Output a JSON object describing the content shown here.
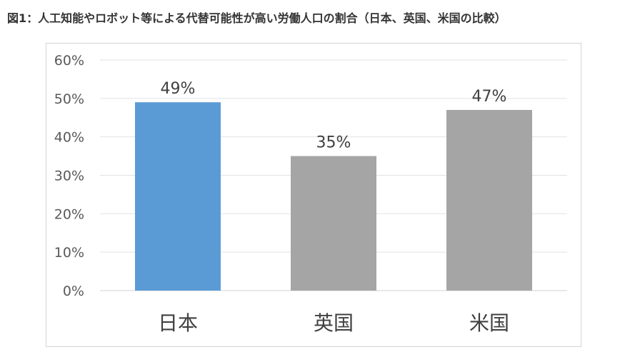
{
  "title": "図1：人工知能やロボット等による代替可能性が高い労働人口の割合（日本、英国、米国の比較）",
  "chart_data": {
    "type": "bar",
    "categories": [
      "日本",
      "英国",
      "米国"
    ],
    "values": [
      49,
      35,
      47
    ],
    "data_labels": [
      "49%",
      "35%",
      "47%"
    ],
    "bar_colors": [
      "#5b9bd5",
      "#a5a5a5",
      "#a5a5a5"
    ],
    "ylim": [
      0,
      60
    ],
    "yticks": [
      0,
      10,
      20,
      30,
      40,
      50,
      60
    ],
    "ytick_labels": [
      "0%",
      "10%",
      "20%",
      "30%",
      "40%",
      "50%",
      "60%"
    ],
    "grid": true,
    "xlabel": "",
    "ylabel": ""
  }
}
